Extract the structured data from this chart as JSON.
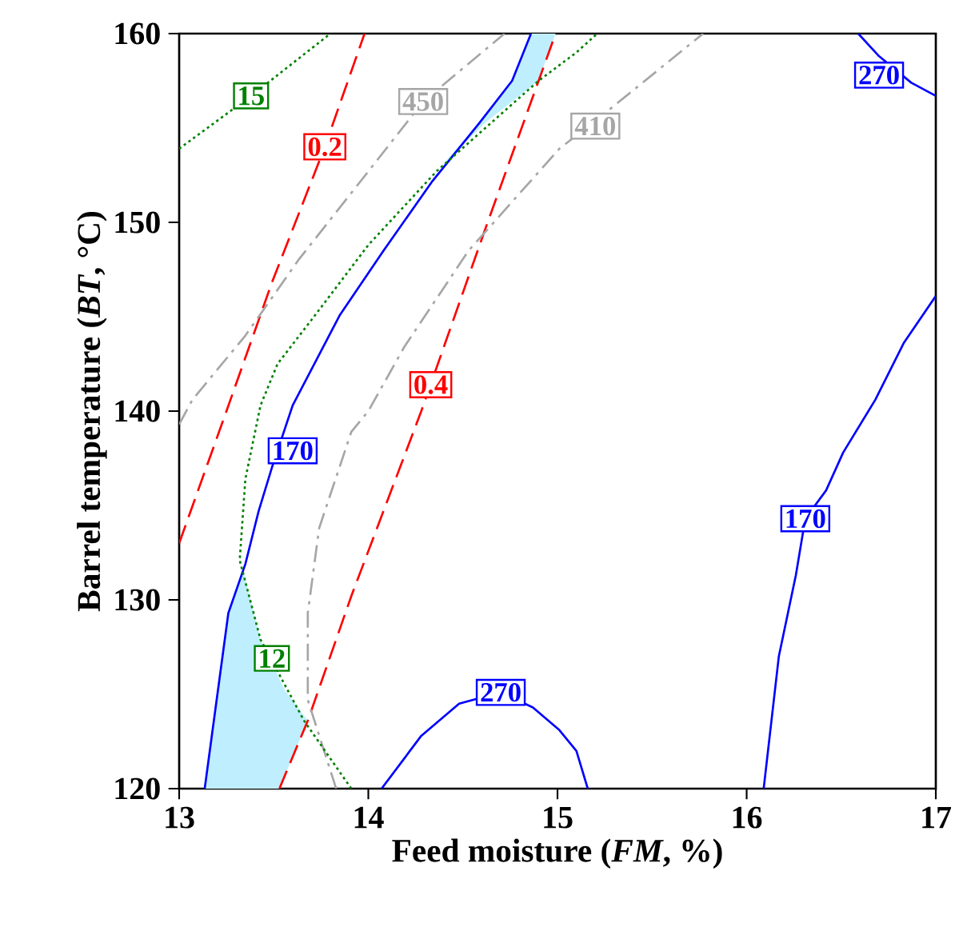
{
  "chart_data": {
    "type": "line",
    "xlabel": "Feed moisture (*FM*, %)",
    "ylabel": "Barrel temperature (*BT*, °C)",
    "xlim": [
      13,
      17
    ],
    "ylim": [
      120,
      160
    ],
    "xticks": [
      13,
      14,
      15,
      16,
      17
    ],
    "yticks": [
      120,
      130,
      140,
      150,
      160
    ],
    "grid": false,
    "series": [
      {
        "type": "area",
        "color": "#bfefff",
        "x": [
          13.135,
          13.26,
          13.34,
          13.43,
          13.56,
          13.68,
          13.53
        ],
        "values": [
          120,
          129.3,
          131.5,
          127.9,
          125.2,
          123.6,
          120
        ]
      },
      {
        "type": "area",
        "color": "#bfefff",
        "x": [
          14.36,
          14.59,
          14.76,
          14.86,
          14.99,
          14.9,
          14.62
        ],
        "values": [
          152.7,
          155.3,
          157.5,
          160,
          160,
          157.5,
          155.3
        ]
      },
      {
        "color": "#0000ff",
        "line_style": "solid",
        "x": [
          13.135,
          13.26,
          13.35,
          13.42,
          13.49,
          13.6,
          13.85,
          14.08,
          14.34,
          14.59,
          14.76,
          14.86
        ],
        "values": [
          120,
          129.3,
          131.9,
          134.7,
          137.0,
          140.3,
          145.1,
          148.5,
          152.2,
          155.3,
          157.5,
          160
        ]
      },
      {
        "color": "#0000ff",
        "line_style": "solid",
        "x": [
          14.07,
          14.28,
          14.48,
          14.7,
          14.87,
          15.01,
          15.1,
          15.16
        ],
        "values": [
          120,
          122.8,
          124.5,
          125.1,
          124.3,
          123.1,
          122.0,
          120
        ]
      },
      {
        "color": "#0000ff",
        "line_style": "solid",
        "x": [
          16.09,
          16.17,
          16.26,
          16.31,
          16.42,
          16.51,
          16.68,
          16.83,
          17
        ],
        "values": [
          120,
          127.0,
          131.3,
          134.3,
          135.8,
          137.8,
          140.6,
          143.6,
          146.1
        ]
      },
      {
        "color": "#0000ff",
        "line_style": "solid",
        "x": [
          16.59,
          16.7,
          16.87,
          17
        ],
        "values": [
          160,
          158.8,
          157.4,
          156.7
        ]
      },
      {
        "color": "#ff0000",
        "line_style": "dashed",
        "x": [
          13,
          13.25,
          13.49,
          13.77,
          13.98
        ],
        "values": [
          133.0,
          140,
          146.8,
          154.0,
          160
        ]
      },
      {
        "color": "#ff0000",
        "line_style": "dashed",
        "x": [
          13.53,
          13.68,
          13.91,
          14.28,
          14.62,
          14.99
        ],
        "values": [
          120,
          123.6,
          130.2,
          140.0,
          149.7,
          160
        ]
      },
      {
        "color": "#a6a6a6",
        "line_style": "dashdot",
        "x": [
          13,
          13.07,
          13.35,
          13.63,
          14.0,
          14.29,
          14.72
        ],
        "values": [
          139.3,
          140.6,
          144.0,
          148.0,
          152.7,
          156.4,
          160
        ]
      },
      {
        "color": "#a6a6a6",
        "line_style": "dashdot",
        "x": [
          13.83,
          13.68,
          13.68,
          13.74,
          13.91,
          14.0,
          14.19,
          14.53,
          15.01,
          15.29,
          15.77
        ],
        "values": [
          120,
          124.7,
          129.3,
          133.8,
          138.9,
          140,
          143.4,
          148.5,
          153.9,
          156.1,
          160
        ]
      },
      {
        "color": "#008000",
        "line_style": "dotted",
        "x": [
          13,
          13.38,
          13.8
        ],
        "values": [
          153.9,
          156.7,
          160
        ]
      },
      {
        "color": "#008000",
        "line_style": "dotted",
        "x": [
          13.91,
          13.66,
          13.43,
          13.32,
          13.35,
          13.43,
          13.52,
          13.72,
          14.0,
          14.36,
          14.9,
          15.1,
          15.21
        ],
        "values": [
          120,
          123.6,
          127.9,
          132.1,
          136.4,
          140.3,
          142.5,
          145.1,
          148.8,
          152.7,
          157.5,
          159.0,
          160
        ]
      }
    ],
    "annotations": [
      {
        "text": "170",
        "x": 13.6,
        "y": 137.9
      },
      {
        "text": "170",
        "x": 16.31,
        "y": 134.3
      },
      {
        "text": "270",
        "x": 14.7,
        "y": 125.1
      },
      {
        "text": "270",
        "x": 16.7,
        "y": 157.8
      },
      {
        "text": "0.2",
        "x": 13.77,
        "y": 154.0
      },
      {
        "text": "0.4",
        "x": 14.33,
        "y": 141.4
      },
      {
        "text": "450",
        "x": 14.29,
        "y": 156.4
      },
      {
        "text": "410",
        "x": 15.2,
        "y": 155.1
      },
      {
        "text": "15",
        "x": 13.38,
        "y": 156.7
      },
      {
        "text": "12",
        "x": 13.49,
        "y": 126.9
      }
    ]
  }
}
